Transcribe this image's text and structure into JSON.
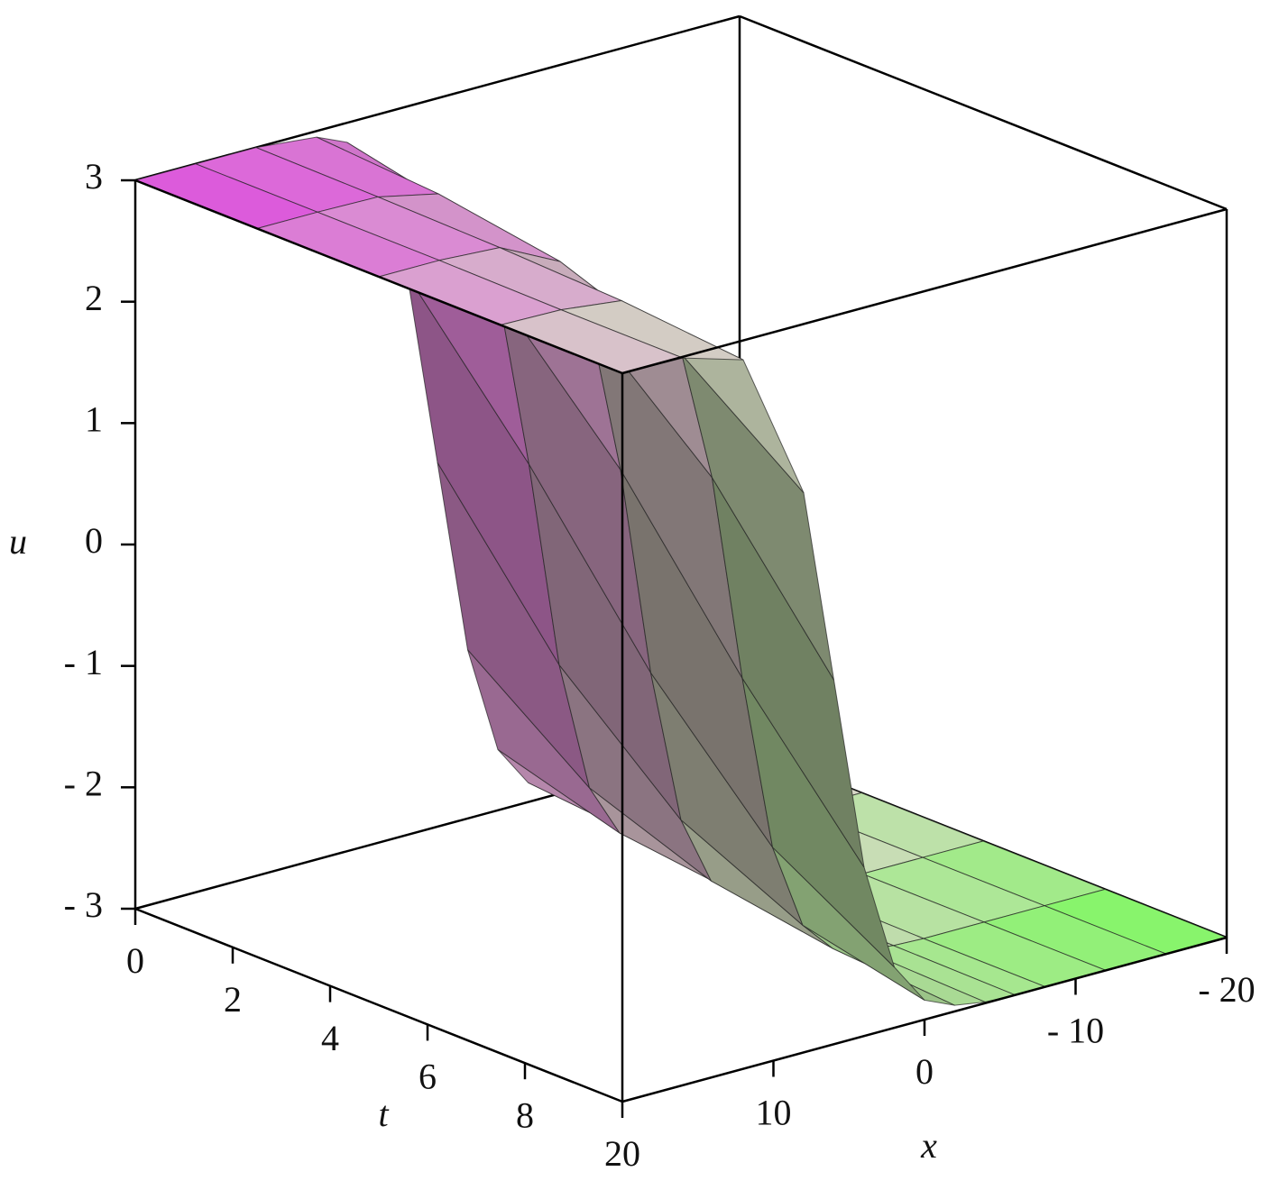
{
  "chart_data": {
    "type": "surface",
    "u_axis_label": "u",
    "t_axis_label": "t",
    "x_axis_label": "x",
    "x": [
      -20,
      -16,
      -12,
      -8,
      -6,
      -4,
      -2,
      0,
      2,
      4,
      6,
      8,
      12,
      16,
      20
    ],
    "t": [
      0,
      2.5,
      5,
      7.5,
      10
    ],
    "u": [
      [
        -3,
        -3,
        -3,
        -2.95,
        -2.84,
        -2.5,
        -1.61,
        0,
        1.61,
        2.5,
        2.84,
        2.95,
        3,
        3,
        3
      ],
      [
        -3,
        -3,
        -3,
        -2.98,
        -2.93,
        -2.79,
        -2.35,
        -1.27,
        0.45,
        1.91,
        2.62,
        2.88,
        2.99,
        3,
        3
      ],
      [
        -3,
        -3,
        -3,
        -2.99,
        -2.97,
        -2.91,
        -2.72,
        -2.15,
        -0.87,
        0.87,
        2.15,
        2.72,
        2.97,
        3,
        3
      ],
      [
        -3,
        -3,
        -3,
        -3,
        -2.99,
        -2.96,
        -2.88,
        -2.62,
        -1.91,
        -0.45,
        1.27,
        2.35,
        2.93,
        2.99,
        3
      ],
      [
        -3,
        -3,
        -3,
        -3,
        -3,
        -2.99,
        -2.95,
        -2.84,
        -2.5,
        -1.61,
        0,
        1.61,
        2.84,
        2.99,
        3
      ]
    ],
    "xlim": [
      -20,
      20
    ],
    "tlim": [
      0,
      10
    ],
    "ulim": [
      -3,
      3
    ],
    "xticks": [
      20,
      10,
      0,
      {
        "value": -10,
        "label": "- 10"
      },
      {
        "value": -20,
        "label": "- 20"
      }
    ],
    "tticks": [
      0,
      2,
      4,
      6,
      8
    ],
    "uticks": [
      {
        "value": -3,
        "label": "- 3"
      },
      {
        "value": -2,
        "label": "- 2"
      },
      {
        "value": -1,
        "label": "- 1"
      },
      0,
      1,
      2,
      3
    ],
    "colorscale": [
      "#d040d0",
      "#60f040"
    ]
  }
}
